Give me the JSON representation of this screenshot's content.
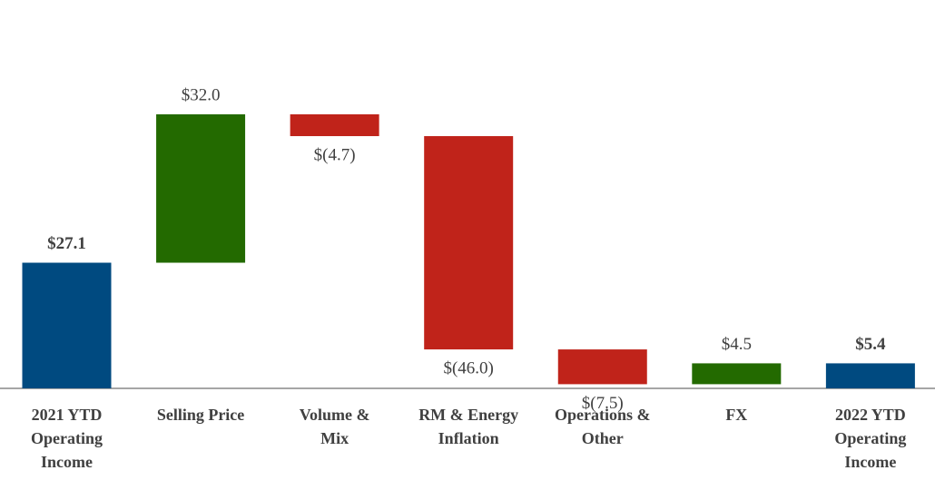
{
  "chart_data": {
    "type": "waterfall",
    "categories": [
      [
        "2021 YTD",
        "Operating",
        "Income"
      ],
      [
        "Selling Price"
      ],
      [
        "Volume &",
        "Mix"
      ],
      [
        "RM & Energy",
        "Inflation"
      ],
      [
        "Operations &",
        "Other"
      ],
      [
        "FX"
      ],
      [
        "2022 YTD",
        "Operating",
        "Income"
      ]
    ],
    "values": [
      27.1,
      32.0,
      -4.7,
      -46.0,
      -7.5,
      4.5,
      5.4
    ],
    "value_labels": [
      "$27.1",
      "$32.0",
      "$(4.7)",
      "$(46.0)",
      "$(7.5)",
      "$4.5",
      "$5.4"
    ],
    "colors": [
      "#004a80",
      "#236a00",
      "#c0231a",
      "#c0231a",
      "#c0231a",
      "#236a00",
      "#004a80"
    ]
  }
}
